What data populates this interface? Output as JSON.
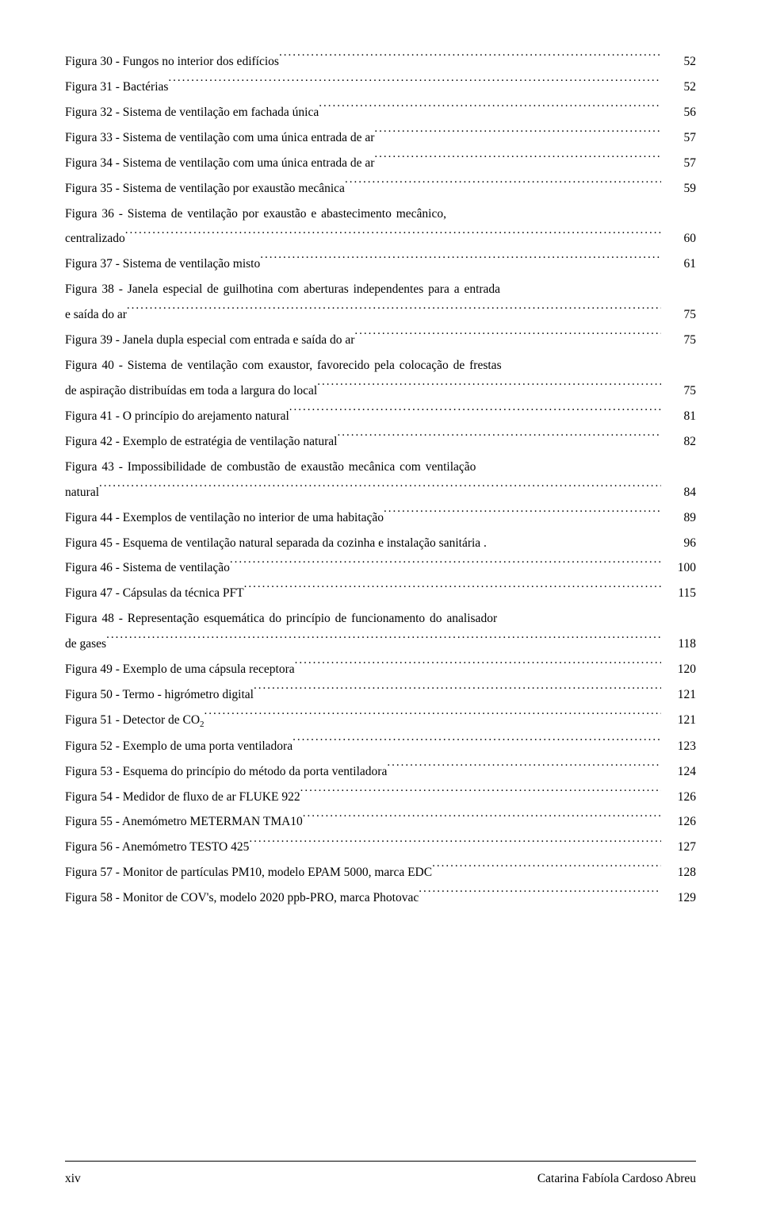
{
  "entries": [
    {
      "text": "Figura 30 - Fungos no interior dos edifícios",
      "page": "52"
    },
    {
      "text": "Figura 31 - Bactérias",
      "page": "52"
    },
    {
      "text": "Figura 32 - Sistema de ventilação em fachada única",
      "page": "56"
    },
    {
      "text": "Figura 33 - Sistema de ventilação com uma única entrada de ar",
      "page": "57"
    },
    {
      "text": "Figura 34 - Sistema de ventilação com uma única entrada de ar",
      "page": "57"
    },
    {
      "text": "Figura 35 - Sistema de ventilação por exaustão mecânica",
      "page": "59"
    },
    {
      "type": "multi",
      "line1": "Figura 36 - Sistema de ventilação por exaustão e abastecimento mecânico,",
      "text": "centralizado",
      "page": "60"
    },
    {
      "text": "Figura 37 - Sistema de ventilação misto",
      "page": "61"
    },
    {
      "type": "multi",
      "line1": "Figura 38 - Janela especial de guilhotina com aberturas independentes para a entrada",
      "text": "e saída do ar",
      "page": "75"
    },
    {
      "text": "Figura 39 - Janela dupla especial com entrada e saída do ar",
      "page": "75"
    },
    {
      "type": "multi",
      "line1": "Figura 40 - Sistema de ventilação com exaustor, favorecido pela colocação de frestas",
      "text": "de aspiração distribuídas em toda a largura do local",
      "page": "75"
    },
    {
      "text": "Figura 41 - O princípio do arejamento natural",
      "page": "81"
    },
    {
      "text": "Figura 42 - Exemplo de estratégia de ventilação natural",
      "page": "82"
    },
    {
      "type": "multi",
      "line1": "Figura 43 - Impossibilidade de combustão de exaustão mecânica com ventilação",
      "text": "natural",
      "page": "84"
    },
    {
      "text": "Figura 44 - Exemplos de ventilação no interior de uma habitação",
      "page": "89"
    },
    {
      "text": "Figura 45 - Esquema de ventilação natural separada da cozinha e instalação sanitária .",
      "page": "96",
      "nodots": true
    },
    {
      "text": "Figura 46 - Sistema de ventilação",
      "page": "100"
    },
    {
      "text": "Figura 47 - Cápsulas da técnica PFT",
      "page": "115"
    },
    {
      "type": "multi",
      "line1": "Figura 48 - Representação esquemática do princípio de funcionamento do analisador",
      "text": "de gases",
      "page": "118"
    },
    {
      "text": "Figura 49 - Exemplo de uma cápsula receptora",
      "page": "120"
    },
    {
      "text": "Figura 50 - Termo - higrómetro digital",
      "page": "121"
    },
    {
      "text_html": "Figura 51 - Detector de CO<span class=\"sub\">2</span>",
      "page": "121"
    },
    {
      "text": "Figura 52 - Exemplo de uma porta ventiladora",
      "page": "123"
    },
    {
      "text": "Figura 53 - Esquema do princípio do método da porta ventiladora",
      "page": "124"
    },
    {
      "text": "Figura 54 - Medidor de fluxo de ar FLUKE 922",
      "page": "126"
    },
    {
      "text": "Figura 55 - Anemómetro METERMAN TMA10",
      "page": "126"
    },
    {
      "text": "Figura 56 - Anemómetro TESTO 425",
      "page": "127"
    },
    {
      "text": "Figura 57 - Monitor de partículas PM10, modelo EPAM 5000, marca EDC",
      "page": "128"
    },
    {
      "text": "Figura 58 - Monitor de COV's, modelo 2020 ppb-PRO, marca Photovac",
      "page": "129"
    }
  ],
  "footer": {
    "left": "xiv",
    "right": "Catarina Fabíola Cardoso Abreu"
  }
}
